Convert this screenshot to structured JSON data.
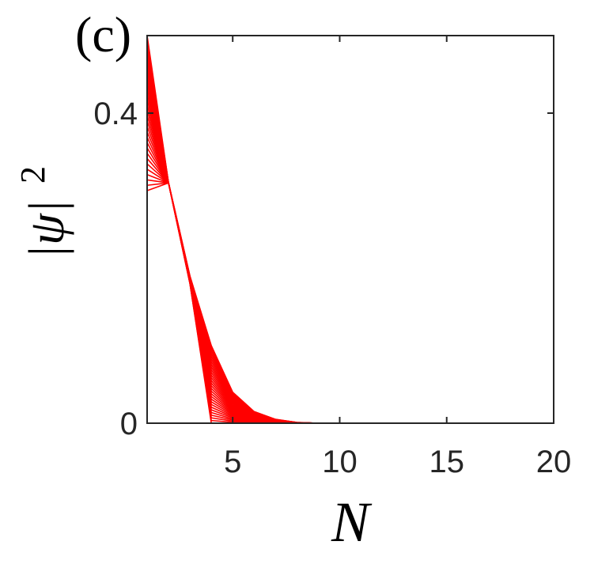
{
  "panel_label": "(c)",
  "chart_data": {
    "type": "line",
    "xlabel": "N",
    "ylabel_base": "|ψ|",
    "ylabel_exp": "2",
    "xlim": [
      1,
      20
    ],
    "ylim": [
      0,
      0.5
    ],
    "x_ticks": [
      5,
      10,
      15,
      20
    ],
    "x_tick_labels": [
      "5",
      "10",
      "15",
      "20"
    ],
    "y_ticks": [
      0,
      0.4
    ],
    "y_tick_labels": [
      "0",
      "0.4"
    ],
    "grid": false,
    "box": true,
    "series_color": "#ff0000",
    "x": [
      1,
      2,
      3,
      4,
      5,
      6,
      7,
      8,
      9,
      10,
      11,
      12,
      13,
      14,
      15,
      16,
      17,
      18,
      19,
      20
    ],
    "series_count": 30,
    "series_low": [
      0.3,
      0.31,
      0.18,
      0.0,
      0.0,
      0.0,
      0.0,
      0.0,
      0.0,
      0.0,
      0.0,
      0.0,
      0.0,
      0.0,
      0.0,
      0.0,
      0.0,
      0.0,
      0.0,
      0.0
    ],
    "series_high": [
      0.5,
      0.31,
      0.19,
      0.1,
      0.04,
      0.015,
      0.005,
      0.001,
      0.0,
      0.0,
      0.0,
      0.0,
      0.0,
      0.0,
      0.0,
      0.0,
      0.0,
      0.0,
      0.0,
      0.0
    ]
  }
}
